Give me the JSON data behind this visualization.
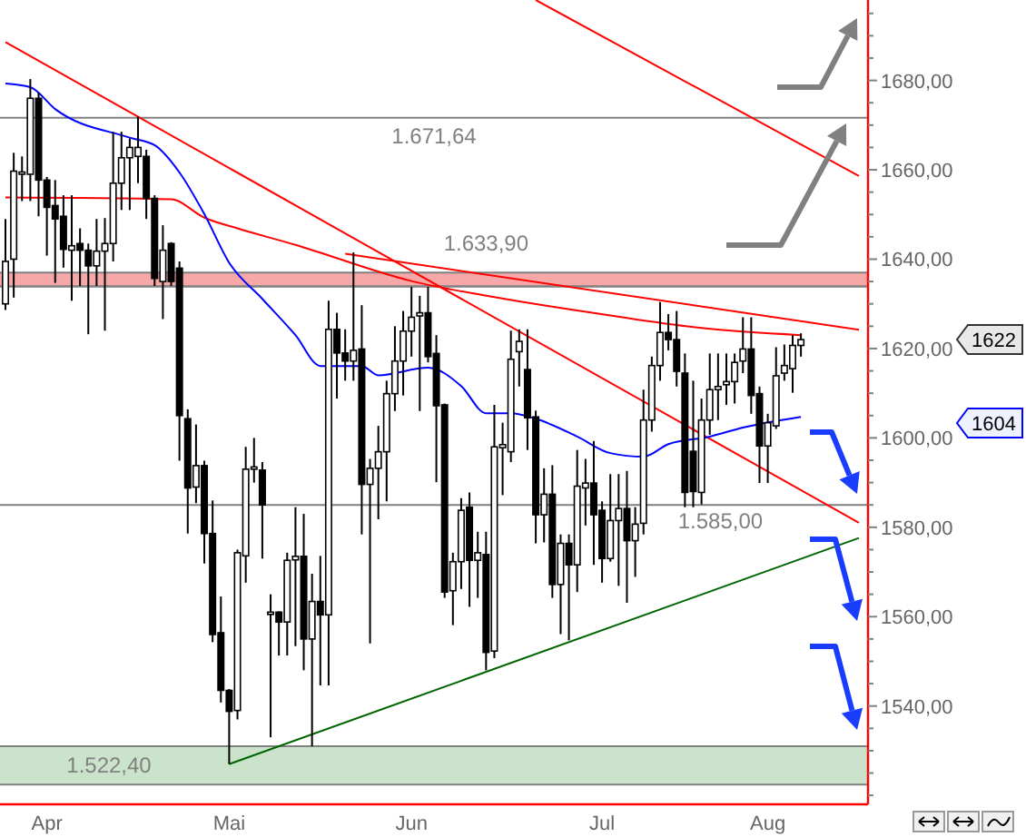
{
  "chart_data": {
    "type": "candlestick",
    "categories": [
      null,
      null,
      null,
      null,
      null,
      "Apr",
      null,
      null,
      null,
      null,
      null,
      null,
      null,
      null,
      null,
      null,
      null,
      null,
      null,
      null,
      null,
      null,
      null,
      null,
      null,
      null,
      null,
      "Mai",
      null,
      null,
      null,
      null,
      null,
      null,
      null,
      null,
      null,
      null,
      null,
      null,
      null,
      null,
      null,
      null,
      null,
      null,
      null,
      null,
      null,
      "Jun",
      null,
      null,
      null,
      null,
      null,
      null,
      null,
      null,
      null,
      null,
      null,
      null,
      null,
      null,
      null,
      null,
      null,
      null,
      null,
      null,
      null,
      null,
      "Jul",
      null,
      null,
      null,
      null,
      null,
      null,
      null,
      null,
      null,
      null,
      null,
      null,
      null,
      null,
      null,
      null,
      null,
      null,
      null,
      "Aug",
      null,
      null,
      null,
      null,
      null,
      null,
      null,
      null,
      null,
      null,
      null
    ],
    "ohlc": [
      [
        1630,
        1649,
        1628.6,
        1639.5
      ],
      [
        1640,
        1663.8,
        1631.4,
        1659.7
      ],
      [
        1659,
        1663,
        1653,
        1659.5
      ],
      [
        1659,
        1680.3,
        1653,
        1676
      ],
      [
        1676,
        1677.3,
        1649.6,
        1657.7
      ],
      [
        1657.7,
        1658.4,
        1640.8,
        1651.6
      ],
      [
        1652,
        1657.7,
        1634.7,
        1649
      ],
      [
        1649.6,
        1654.3,
        1638.1,
        1642.2
      ],
      [
        1642,
        1654.3,
        1630.7,
        1643
      ],
      [
        1643.5,
        1646.9,
        1634,
        1642
      ],
      [
        1642,
        1643.5,
        1623.2,
        1638.5
      ],
      [
        1638.5,
        1649,
        1634,
        1641.8
      ],
      [
        1641.8,
        1649.2,
        1624,
        1643.5
      ],
      [
        1643.5,
        1668.5,
        1639.5,
        1657
      ],
      [
        1657,
        1668.5,
        1651,
        1662.7
      ],
      [
        1662.7,
        1667,
        1651,
        1665
      ],
      [
        1663,
        1671.9,
        1657,
        1665
      ],
      [
        1663,
        1664.5,
        1649,
        1653.6
      ],
      [
        1653.6,
        1654.3,
        1634,
        1635.7
      ],
      [
        1635,
        1647.6,
        1626.6,
        1642
      ],
      [
        1643.5,
        1643.8,
        1634,
        1635
      ],
      [
        1638,
        1639.5,
        1594.9,
        1605
      ],
      [
        1604.3,
        1606.4,
        1578.6,
        1588.8
      ],
      [
        1589,
        1603,
        1585.4,
        1593.8
      ],
      [
        1593.8,
        1594.9,
        1571.9,
        1578.6
      ],
      [
        1578.6,
        1586,
        1554.3,
        1556
      ],
      [
        1556.4,
        1564.5,
        1540.8,
        1543.5
      ],
      [
        1543.5,
        1543.8,
        1527,
        1538.8
      ],
      [
        1539,
        1575,
        1537,
        1574.3
      ],
      [
        1573.6,
        1598,
        1567.6,
        1593
      ],
      [
        1593,
        1600,
        1590,
        1593.5
      ],
      [
        1592.8,
        1594.6,
        1573,
        1585
      ],
      [
        1560.5,
        1565,
        1533,
        1561
      ],
      [
        1561,
        1561.2,
        1551.3,
        1558.8
      ],
      [
        1558.8,
        1574.3,
        1551.3,
        1572.6
      ],
      [
        1572.7,
        1584.5,
        1553.4,
        1573.5
      ],
      [
        1573.5,
        1583,
        1548,
        1555
      ],
      [
        1555,
        1569.6,
        1531,
        1563.4
      ],
      [
        1563.4,
        1573.6,
        1544.6,
        1560.4
      ],
      [
        1560.4,
        1630.7,
        1544.6,
        1624.3
      ],
      [
        1624.3,
        1628,
        1608.8,
        1619
      ],
      [
        1619,
        1624.3,
        1612.8,
        1617.2
      ],
      [
        1617.2,
        1641.5,
        1612.8,
        1619.6
      ],
      [
        1619.9,
        1629.7,
        1578.4,
        1589.6
      ],
      [
        1589.6,
        1595.3,
        1554,
        1593.2
      ],
      [
        1593.2,
        1602.7,
        1581.8,
        1596.9
      ],
      [
        1596.9,
        1612.8,
        1585.8,
        1609.9
      ],
      [
        1609.9,
        1625,
        1606,
        1617.2
      ],
      [
        1617.2,
        1628.4,
        1609.5,
        1623.9
      ],
      [
        1623.9,
        1633.8,
        1618.2,
        1627
      ],
      [
        1627.3,
        1631.8,
        1606,
        1628
      ],
      [
        1628,
        1633.8,
        1616.9,
        1618.2
      ],
      [
        1618.9,
        1623,
        1590.1,
        1607.2
      ],
      [
        1607.4,
        1607.7,
        1564.2,
        1565.5
      ],
      [
        1565.8,
        1574.3,
        1558.1,
        1572.3
      ],
      [
        1572.3,
        1586.5,
        1566.2,
        1583.8
      ],
      [
        1584.5,
        1587.8,
        1562.2,
        1572.6
      ],
      [
        1572.6,
        1579,
        1564.2,
        1574.3
      ],
      [
        1573.9,
        1579,
        1548,
        1552
      ],
      [
        1552.3,
        1607.4,
        1550.7,
        1598
      ],
      [
        1597.8,
        1603.4,
        1587.2,
        1598.5
      ],
      [
        1596.9,
        1624,
        1594.6,
        1617.6
      ],
      [
        1619.3,
        1624.3,
        1611.5,
        1621.6
      ],
      [
        1615.3,
        1624.3,
        1597.3,
        1604.5
      ],
      [
        1604.7,
        1606.1,
        1576.4,
        1582.8
      ],
      [
        1582.8,
        1593.2,
        1576.6,
        1587.4
      ],
      [
        1587.4,
        1593.9,
        1564.2,
        1567.2
      ],
      [
        1567.2,
        1578.4,
        1556.1,
        1576.4
      ],
      [
        1576.4,
        1578.4,
        1554.7,
        1571.6
      ],
      [
        1571.6,
        1597.3,
        1565.5,
        1589.2
      ],
      [
        1588.8,
        1595.3,
        1580.4,
        1589.9
      ],
      [
        1589.9,
        1599.3,
        1571.6,
        1582.8
      ],
      [
        1583.8,
        1585.8,
        1567.6,
        1573
      ],
      [
        1573,
        1591.9,
        1572.3,
        1581.5
      ],
      [
        1581.5,
        1591.9,
        1566.9,
        1584.2
      ],
      [
        1584.2,
        1592.6,
        1563.1,
        1577
      ],
      [
        1577,
        1584.5,
        1568.9,
        1580.7
      ],
      [
        1580.9,
        1610.8,
        1578.4,
        1604
      ],
      [
        1604,
        1618.2,
        1601.4,
        1616.2
      ],
      [
        1616.2,
        1630.4,
        1612.8,
        1623.6
      ],
      [
        1623.6,
        1627.7,
        1619.6,
        1622
      ],
      [
        1622,
        1628.4,
        1611.5,
        1614.9
      ],
      [
        1614.5,
        1618.9,
        1584.5,
        1587.8
      ],
      [
        1597,
        1612.8,
        1584.5,
        1588
      ],
      [
        1587.8,
        1608.8,
        1585.1,
        1604
      ],
      [
        1604,
        1618.9,
        1600.7,
        1610.8
      ],
      [
        1610.8,
        1618.9,
        1604,
        1611.5
      ],
      [
        1611.9,
        1618.9,
        1607.4,
        1612.6
      ],
      [
        1612.6,
        1618.9,
        1607.7,
        1616.9
      ],
      [
        1617.2,
        1627,
        1614.5,
        1619.9
      ],
      [
        1619.9,
        1627,
        1605.4,
        1609.5
      ],
      [
        1609.9,
        1611.5,
        1589.9,
        1598.2
      ],
      [
        1598.2,
        1605.4,
        1589.9,
        1603.4
      ],
      [
        1602.7,
        1620.3,
        1602,
        1613.9
      ],
      [
        1614.5,
        1620.9,
        1612.8,
        1616.2
      ],
      [
        1615.5,
        1623,
        1610.1,
        1620.7
      ],
      [
        1620.7,
        1623.4,
        1618.2,
        1622
      ],
      null,
      null,
      null,
      null,
      null,
      null,
      null
    ],
    "series": [
      {
        "type": "line",
        "color": "#ff0000",
        "values": [
          1688.6,
          null,
          null,
          null,
          null,
          null,
          null,
          null,
          null,
          null,
          null,
          null,
          null,
          null,
          null,
          null,
          null,
          null,
          null,
          null,
          null,
          null,
          null,
          null,
          null,
          null,
          null,
          null,
          null,
          null,
          null,
          null,
          null,
          null,
          null,
          null,
          null,
          null,
          null,
          null,
          null,
          null,
          null,
          null,
          null,
          null,
          null,
          null,
          null,
          null,
          null,
          null,
          null,
          null,
          null,
          null,
          null,
          null,
          null,
          null,
          null,
          null,
          null,
          null,
          null,
          null,
          null,
          null,
          null,
          null,
          null,
          null,
          null,
          null,
          null,
          null,
          null,
          null,
          null,
          null,
          null,
          null,
          null,
          null,
          null,
          null,
          null,
          null,
          null,
          null,
          null,
          null,
          null,
          null,
          null,
          null,
          null,
          null,
          null,
          null,
          null,
          null,
          null,
          1581
        ]
      },
      {
        "type": "line",
        "color": "#ff0000",
        "values": [
          null,
          null,
          null,
          null,
          null,
          null,
          null,
          null,
          null,
          null,
          null,
          null,
          null,
          null,
          null,
          null,
          null,
          null,
          null,
          null,
          null,
          null,
          null,
          null,
          null,
          null,
          null,
          null,
          null,
          null,
          null,
          null,
          null,
          null,
          null,
          null,
          null,
          null,
          null,
          null,
          null,
          null,
          null,
          null,
          null,
          null,
          null,
          null,
          null,
          null,
          null,
          null,
          null,
          null,
          null,
          null,
          null,
          null,
          null,
          null,
          null,
          null,
          null,
          null,
          1698,
          null,
          null,
          null,
          null,
          null,
          null,
          null,
          null,
          null,
          null,
          null,
          null,
          null,
          null,
          null,
          null,
          null,
          null,
          null,
          null,
          null,
          null,
          null,
          null,
          null,
          null,
          null,
          null,
          null,
          null,
          null,
          null,
          null,
          null,
          null,
          null,
          null,
          null,
          1658.6
        ]
      },
      {
        "type": "line",
        "color": "#ff0000",
        "values": [
          null,
          null,
          null,
          null,
          null,
          null,
          null,
          null,
          null,
          null,
          null,
          null,
          null,
          null,
          null,
          null,
          null,
          null,
          null,
          null,
          null,
          null,
          null,
          null,
          null,
          null,
          null,
          null,
          null,
          null,
          null,
          null,
          null,
          null,
          null,
          null,
          null,
          null,
          null,
          null,
          null,
          1641.2,
          null,
          null,
          null,
          null,
          null,
          null,
          null,
          null,
          null,
          null,
          null,
          null,
          null,
          null,
          null,
          null,
          null,
          null,
          null,
          null,
          null,
          null,
          null,
          null,
          null,
          null,
          null,
          null,
          null,
          null,
          null,
          null,
          null,
          null,
          null,
          null,
          null,
          null,
          null,
          null,
          null,
          null,
          null,
          null,
          null,
          null,
          null,
          null,
          null,
          null,
          null,
          null,
          null,
          null,
          null,
          null,
          null,
          null,
          null,
          null,
          null,
          1624.2
        ]
      },
      {
        "type": "line",
        "color": "#006400",
        "values": [
          null,
          null,
          null,
          null,
          null,
          null,
          null,
          null,
          null,
          null,
          null,
          null,
          null,
          null,
          null,
          null,
          null,
          null,
          null,
          null,
          null,
          null,
          null,
          null,
          null,
          null,
          null,
          1527,
          null,
          null,
          null,
          null,
          null,
          null,
          null,
          null,
          null,
          null,
          null,
          null,
          null,
          null,
          null,
          null,
          null,
          null,
          null,
          null,
          null,
          null,
          null,
          null,
          null,
          null,
          null,
          null,
          null,
          null,
          null,
          null,
          null,
          null,
          null,
          null,
          null,
          null,
          null,
          null,
          null,
          null,
          null,
          null,
          null,
          null,
          null,
          null,
          null,
          null,
          null,
          null,
          null,
          null,
          null,
          null,
          null,
          null,
          null,
          null,
          null,
          null,
          null,
          null,
          null,
          null,
          null,
          null,
          null,
          null,
          null,
          null,
          null,
          null,
          null,
          1577.6
        ]
      },
      {
        "type": "line",
        "color": "#ff0000",
        "values": [
          1653.8,
          null,
          null,
          null,
          null,
          null,
          null,
          null,
          null,
          null,
          null,
          null,
          null,
          null,
          null,
          null,
          null,
          null,
          null,
          null,
          1653.4,
          null,
          null,
          null,
          1649.3,
          null,
          null,
          null,
          1646.9,
          null,
          null,
          null,
          null,
          null,
          null,
          1643.2,
          null,
          null,
          null,
          null,
          null,
          null,
          null,
          null,
          null,
          null,
          null,
          null,
          null,
          1635.1,
          null,
          null,
          null,
          null,
          null,
          null,
          null,
          null,
          null,
          1631.5,
          null,
          null,
          null,
          null,
          null,
          null,
          null,
          null,
          null,
          null,
          null,
          null,
          null,
          1627.4,
          null,
          null,
          null,
          null,
          null,
          null,
          null,
          null,
          null,
          null,
          1624.6,
          null,
          null,
          null,
          null,
          null,
          null,
          null,
          null,
          null,
          null,
          null,
          1623,
          null,
          null,
          null,
          null,
          null,
          null,
          null
        ]
      },
      {
        "type": "line",
        "color": "#0000ff",
        "values": [
          1679.3,
          null,
          null,
          1678.5,
          null,
          null,
          1673.6,
          null,
          null,
          null,
          null,
          null,
          null,
          null,
          null,
          1667.2,
          null,
          null,
          1665.5,
          null,
          null,
          1659.4,
          null,
          null,
          1650.1,
          null,
          null,
          1639.2,
          null,
          null,
          null,
          1631.1,
          null,
          null,
          null,
          1623,
          null,
          null,
          1616.1,
          null,
          null,
          null,
          null,
          1616.1,
          null,
          1614,
          null,
          null,
          null,
          null,
          null,
          1615.7,
          null,
          null,
          null,
          1611.6,
          null,
          null,
          1605.5,
          null,
          null,
          1605.5,
          null,
          null,
          1604.3,
          null,
          null,
          null,
          null,
          1600.3,
          null,
          null,
          null,
          1596.6,
          null,
          null,
          null,
          1595.8,
          null,
          null,
          1598.6,
          null,
          null,
          null,
          null,
          1600.3,
          null,
          null,
          null,
          1602.3,
          null,
          null,
          null,
          null,
          null,
          null,
          1604.7,
          null,
          null,
          null,
          null,
          null,
          null,
          null
        ]
      }
    ],
    "ylim": [
      1518,
      1698
    ],
    "yticks": [
      {
        "value": 1520,
        "label": null
      },
      {
        "value": 1525,
        "label": null
      },
      {
        "value": 1530,
        "label": null
      },
      {
        "value": 1535,
        "label": null
      },
      {
        "value": 1540,
        "label": "1540,00"
      },
      {
        "value": 1545,
        "label": null
      },
      {
        "value": 1550,
        "label": null
      },
      {
        "value": 1555,
        "label": null
      },
      {
        "value": 1560,
        "label": "1560,00"
      },
      {
        "value": 1565,
        "label": null
      },
      {
        "value": 1570,
        "label": null
      },
      {
        "value": 1575,
        "label": null
      },
      {
        "value": 1580,
        "label": "1580,00"
      },
      {
        "value": 1585,
        "label": null
      },
      {
        "value": 1590,
        "label": null
      },
      {
        "value": 1595,
        "label": null
      },
      {
        "value": 1600,
        "label": "1600,00"
      },
      {
        "value": 1605,
        "label": null
      },
      {
        "value": 1610,
        "label": null
      },
      {
        "value": 1615,
        "label": null
      },
      {
        "value": 1620,
        "label": "1620,00"
      },
      {
        "value": 1625,
        "label": null
      },
      {
        "value": 1630,
        "label": null
      },
      {
        "value": 1635,
        "label": null
      },
      {
        "value": 1640,
        "label": "1640,00"
      },
      {
        "value": 1645,
        "label": null
      },
      {
        "value": 1650,
        "label": null
      },
      {
        "value": 1655,
        "label": null
      },
      {
        "value": 1660,
        "label": "1660,00"
      },
      {
        "value": 1665,
        "label": null
      },
      {
        "value": 1670,
        "label": null
      },
      {
        "value": 1675,
        "label": null
      },
      {
        "value": 1680,
        "label": "1680,00"
      },
      {
        "value": 1685,
        "label": null
      },
      {
        "value": 1690,
        "label": null
      },
      {
        "value": 1695,
        "label": null
      }
    ],
    "ref_lines": [
      {
        "axis": "y",
        "value": 1671.64,
        "label": "1.671,64",
        "color": "#808080"
      },
      {
        "axis": "y",
        "value": 1633.9,
        "label": "1.633,90",
        "color": "#808080"
      },
      {
        "axis": "y",
        "value": 1585,
        "label": "1.585,00",
        "color": "#808080"
      }
    ],
    "bands": [
      {
        "axis": "y",
        "from": 1633.9,
        "to": 1637,
        "color": "#f6a8a8"
      },
      {
        "axis": "y",
        "from": 1522.4,
        "to": 1531,
        "label": "1.522,40",
        "color": "#cae3ca"
      }
    ],
    "annotations": [
      "1622",
      "1604"
    ]
  }
}
